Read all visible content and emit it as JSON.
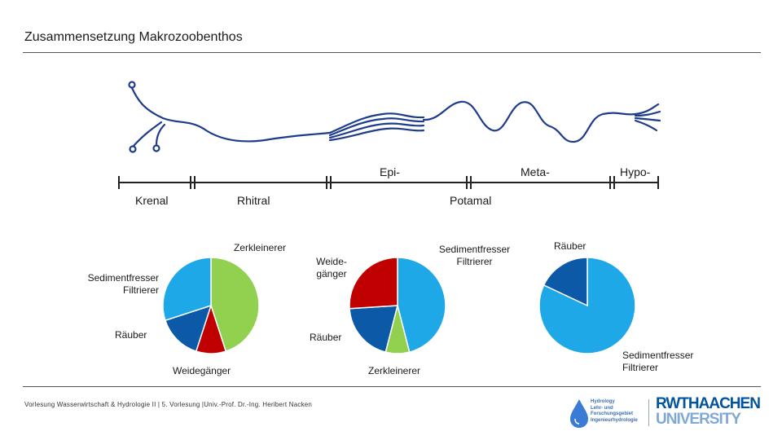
{
  "header": {
    "title": "Zusammensetzung Makrozoobenthos"
  },
  "zones_top": {
    "epi": "Epi-",
    "meta": "Meta-",
    "hypo": "Hypo-"
  },
  "zones_bottom": {
    "krenal": "Krenal",
    "rhitral": "Rhitral",
    "potamal": "Potamal"
  },
  "pie1": {
    "labels": {
      "zerkleinerer": "Zerkleinerer",
      "sedimentfresser_1": "Sedimentfresser",
      "sedimentfresser_2": "Filtrierer",
      "raeuber": "Räuber",
      "weidegaenger": "Weidegänger"
    },
    "slices": [
      {
        "name": "Zerkleinerer",
        "value": 0.45,
        "color": "#92d050"
      },
      {
        "name": "Weidegänger",
        "value": 0.1,
        "color": "#c00000"
      },
      {
        "name": "Räuber",
        "value": 0.15,
        "color": "#0b59a7"
      },
      {
        "name": "Sedimentfresser Filtrierer",
        "value": 0.3,
        "color": "#1fa8e8"
      }
    ]
  },
  "pie2": {
    "labels": {
      "weide_1": "Weide-",
      "weide_2": "gänger",
      "sediment_1": "Sedimentfresser",
      "sediment_2": "Filtrierer",
      "raeuber": "Räuber",
      "zerkleinerer": "Zerkleinerer"
    },
    "slices": [
      {
        "name": "Sedimentfresser Filtrierer",
        "value": 0.46,
        "color": "#1fa8e8"
      },
      {
        "name": "Zerkleinerer",
        "value": 0.08,
        "color": "#92d050"
      },
      {
        "name": "Räuber",
        "value": 0.2,
        "color": "#0b59a7"
      },
      {
        "name": "Weidegänger",
        "value": 0.26,
        "color": "#c00000"
      }
    ]
  },
  "pie3": {
    "labels": {
      "raeuber": "Räuber",
      "sediment_1": "Sedimentfresser",
      "sediment_2": "Filtrierer"
    },
    "slices": [
      {
        "name": "Sedimentfresser Filtrierer",
        "value": 0.82,
        "color": "#1fa8e8"
      },
      {
        "name": "Räuber",
        "value": 0.18,
        "color": "#0b59a7"
      }
    ]
  },
  "footer": {
    "text": "Vorlesung Wasserwirtschaft & Hydrologie II | 5. Vorlesung |Univ.-Prof. Dr.-Ing. Heribert Nacken"
  },
  "logos": {
    "hydro_1": "Hydrology",
    "hydro_2": "Lehr- und",
    "hydro_3": "Forschungsgebiet",
    "hydro_4": "Ingenieurhydrologie",
    "rwth_1": "RWTHAACHEN",
    "rwth_2": "UNIVERSITY",
    "brand_color": "#00549f"
  }
}
